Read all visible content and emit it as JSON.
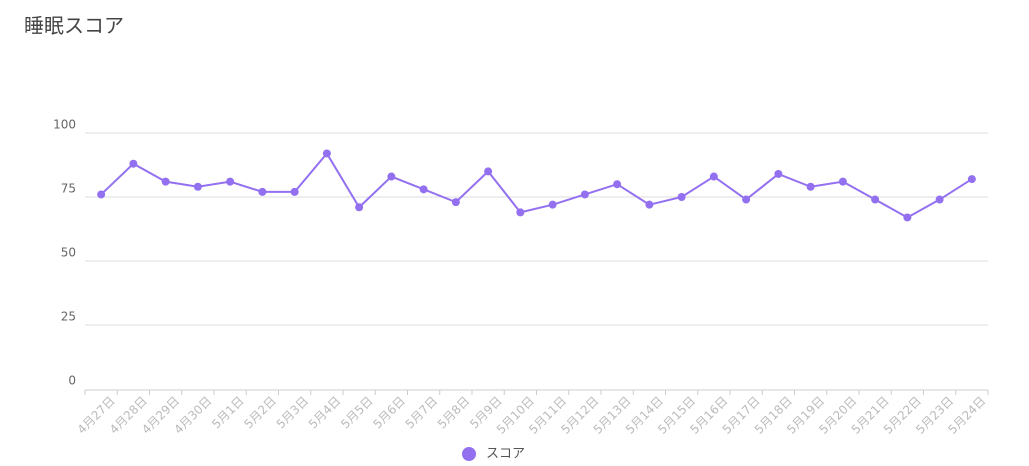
{
  "chart_data": {
    "type": "line",
    "title": "睡眠スコア",
    "categories": [
      "4月27日",
      "4月28日",
      "4月29日",
      "4月30日",
      "5月1日",
      "5月2日",
      "5月3日",
      "5月4日",
      "5月5日",
      "5月6日",
      "5月7日",
      "5月8日",
      "5月9日",
      "5月10日",
      "5月11日",
      "5月12日",
      "5月13日",
      "5月14日",
      "5月15日",
      "5月16日",
      "5月17日",
      "5月18日",
      "5月19日",
      "5月20日",
      "5月21日",
      "5月22日",
      "5月23日",
      "5月24日"
    ],
    "series": [
      {
        "name": "スコア",
        "color": "#9370f0",
        "values": [
          76,
          88,
          81,
          79,
          81,
          77,
          77,
          92,
          71,
          83,
          78,
          73,
          85,
          69,
          72,
          76,
          80,
          72,
          75,
          83,
          74,
          84,
          79,
          81,
          74,
          67,
          74,
          82
        ]
      }
    ],
    "ylim": [
      0,
      100
    ],
    "yticks": [
      0,
      25,
      50,
      75,
      100
    ],
    "grid": true
  }
}
